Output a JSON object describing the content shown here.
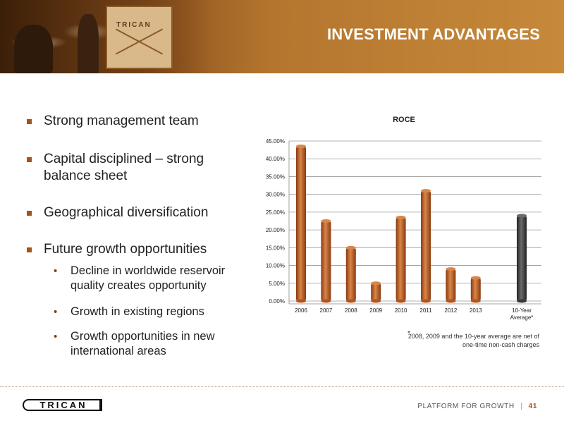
{
  "slide": {
    "title": "INVESTMENT ADVANTAGES",
    "header_photo_text": "TRICAN"
  },
  "bullets": {
    "items": [
      {
        "text": "Strong management team"
      },
      {
        "text": "Capital disciplined – strong balance sheet"
      },
      {
        "text": "Geographical diversification"
      },
      {
        "text": "Future growth opportunities"
      }
    ],
    "sub_items": [
      {
        "text": "Decline in worldwide reservoir quality creates opportunity"
      },
      {
        "text": "Growth in existing regions"
      },
      {
        "text": "Growth opportunities in new international areas"
      }
    ]
  },
  "chart_data": {
    "type": "bar",
    "title": "ROCE",
    "categories": [
      "2006",
      "2007",
      "2008",
      "2009",
      "2010",
      "2011",
      "2012",
      "2013",
      "10-Year Average*"
    ],
    "values": [
      43.5,
      22.5,
      15.0,
      5.0,
      23.5,
      31.0,
      9.0,
      6.5,
      24.0
    ],
    "value_unit": "%",
    "ylim": [
      0,
      45
    ],
    "ytick_labels": [
      "0.00%",
      "5.00%",
      "10.00%",
      "15.00%",
      "20.00%",
      "25.00%",
      "30.00%",
      "35.00%",
      "40.00%",
      "45.00%"
    ],
    "grid": true,
    "legend": "none",
    "colors": {
      "bar": "#b5541c",
      "bar_highlight": "#d9864a",
      "average_bar": "#3a3a3a",
      "average_highlight": "#6a6a6a"
    }
  },
  "footnote": {
    "marker": "*",
    "text": "2008, 2009 and the 10-year average are net of one-time non-cash charges"
  },
  "footer": {
    "logo_text": "TRICAN",
    "tagline": "PLATFORM FOR GROWTH",
    "separator": "|",
    "page_number": "41"
  },
  "colors": {
    "accent": "#a4531a",
    "header_light": "#c6893a",
    "header_dark": "#6a3a12"
  }
}
